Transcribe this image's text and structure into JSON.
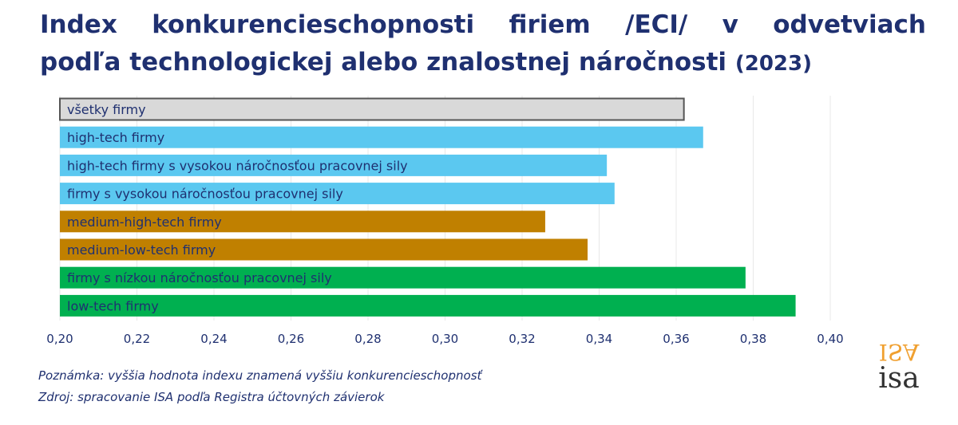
{
  "title": {
    "line1": "Index konkurencieschopnosti firiem /ECI/ v odvetviach",
    "line2": "podľa technologickej alebo znalostnej náročnosti",
    "year": "(2023)"
  },
  "notes": {
    "note": "Poznámka: vyššia hodnota indexu znamená vyššiu konkurencieschopnosť",
    "source": "Zdroj: spracovanie ISA podľa Registra účtovných závierok"
  },
  "logo": {
    "text": "isa",
    "mirrored_text": "ISA"
  },
  "colors": {
    "title": "#1f3070",
    "all_firms": "#d9d9d9",
    "all_firms_border": "#555555",
    "high_tech": "#5bc8f0",
    "medium_tech": "#c08000",
    "low_tech": "#00b050",
    "logo_orange": "#f0a030",
    "logo_dark": "#333333",
    "grid": "#e8e8e8"
  },
  "chart_data": {
    "type": "bar",
    "orientation": "horizontal",
    "categories": [
      "všetky firmy",
      "high-tech firmy",
      "high-tech firmy s vysokou náročnosťou pracovnej sily",
      "firmy s vysokou náročnosťou pracovnej sily",
      "medium-high-tech firmy",
      "medium-low-tech firmy",
      "firmy s nízkou náročnosťou pracovnej sily",
      "low-tech firmy"
    ],
    "values": [
      0.362,
      0.367,
      0.342,
      0.344,
      0.326,
      0.337,
      0.378,
      0.391
    ],
    "bar_colors": [
      "#d9d9d9",
      "#5bc8f0",
      "#5bc8f0",
      "#5bc8f0",
      "#c08000",
      "#c08000",
      "#00b050",
      "#00b050"
    ],
    "xlim": [
      0.2,
      0.4
    ],
    "xticks": [
      "0,20",
      "0,22",
      "0,24",
      "0,26",
      "0,28",
      "0,30",
      "0,32",
      "0,34",
      "0,36",
      "0,38",
      "0,40"
    ],
    "grid": true
  }
}
